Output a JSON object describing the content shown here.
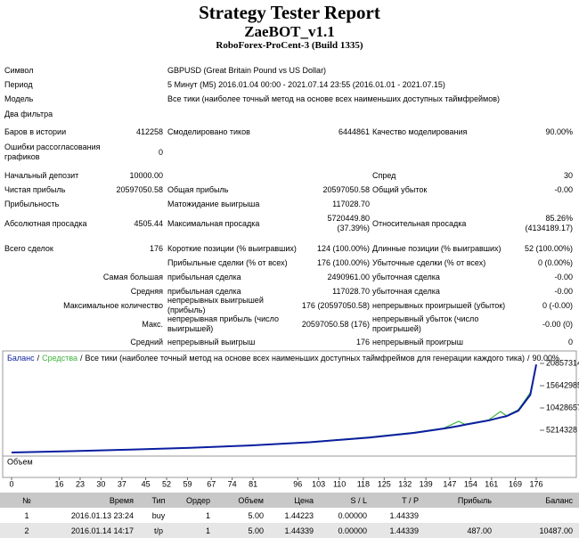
{
  "header": {
    "title": "Strategy Tester Report",
    "subtitle": "ZaeBOT_v1.1",
    "server": "RoboForex-ProCent-3 (Build 1335)"
  },
  "summary": {
    "rows": [
      [
        "Символ",
        null,
        "GBPUSD (Great Britain Pound vs US Dollar)",
        null,
        null,
        null
      ],
      [
        "Период",
        null,
        "5 Минут (M5) 2016.01.04 00:00 - 2021.07.14 23:55 (2016.01.01 - 2021.07.15)",
        null,
        null,
        null
      ],
      [
        "Модель",
        null,
        "Все тики (наиболее точный метод на основе всех наименьших доступных таймфреймов)",
        null,
        null,
        null
      ],
      [
        "Два фильтра",
        null,
        null,
        null,
        null,
        null
      ],
      [
        "Баров в истории",
        "412258",
        "Смоделировано тиков",
        "6444861",
        "Качество моделирования",
        "90.00%"
      ],
      [
        "Ошибки рассогласования графиков",
        "0",
        null,
        null,
        null,
        null
      ],
      [
        "Начальный депозит",
        "10000.00",
        null,
        null,
        "Спред",
        "30"
      ],
      [
        "Чистая прибыль",
        "20597050.58",
        "Общая прибыль",
        "20597050.58",
        "Общий убыток",
        "-0.00"
      ],
      [
        "Прибыльность",
        null,
        "Матожидание выигрыша",
        "117028.70",
        null,
        null
      ],
      [
        "Абсолютная просадка",
        "4505.44",
        "Максимальная просадка",
        "5720449.80 (37.39%)",
        "Относительная просадка",
        "85.26% (4134189.17)"
      ],
      [
        "Всего сделок",
        "176",
        "Короткие позиции (% выигравших)",
        "124 (100.00%)",
        "Длинные позиции (% выигравших)",
        "52 (100.00%)"
      ],
      [
        null,
        null,
        "Прибыльные сделки (% от всех)",
        "176 (100.00%)",
        "Убыточные сделки (% от всех)",
        "0 (0.00%)"
      ],
      [
        null,
        "Самая большая",
        "прибыльная сделка",
        "2490961.00",
        "убыточная сделка",
        "-0.00"
      ],
      [
        null,
        "Средняя",
        "прибыльная сделка",
        "117028.70",
        "убыточная сделка",
        "-0.00"
      ],
      [
        null,
        "Максимальное количество",
        "непрерывных выигрышей (прибыль)",
        "176 (20597050.58)",
        "непрерывных проигрышей (убыток)",
        "0 (-0.00)"
      ],
      [
        null,
        "Макс.",
        "непрерывная прибыль (число выигрышей)",
        "20597050.58 (176)",
        "непрерывный убыток (число проигрышей)",
        "-0.00 (0)"
      ],
      [
        null,
        "Средний",
        "непрерывный выигрыш",
        "176",
        "непрерывный проигрыш",
        "0"
      ]
    ]
  },
  "chart_data": {
    "type": "line",
    "separator": "/",
    "legend_note": "Все тики (наиболее точный метод на основе всех наименьших доступных таймфреймов для генерации каждого тика)",
    "quality": "90.00%",
    "volume_label": "Объем",
    "x": [
      0,
      20,
      40,
      60,
      80,
      100,
      120,
      135,
      145,
      150,
      152,
      160,
      164,
      166,
      170,
      174,
      176
    ],
    "series": [
      {
        "name": "Баланс",
        "color": "#0a1ea0",
        "values": [
          10000,
          320000,
          680000,
          1100000,
          1650000,
          2400000,
          3500000,
          4600000,
          5600000,
          6200000,
          6500000,
          7500000,
          8200000,
          8500000,
          9800000,
          13500000,
          20597050
        ]
      },
      {
        "name": "Средства",
        "color": "#3cb43c",
        "values": [
          10000,
          330000,
          700000,
          1120000,
          1680000,
          2450000,
          3600000,
          4700000,
          5700000,
          7300000,
          6600000,
          7600000,
          9600000,
          8600000,
          10000000,
          14000000,
          20597050
        ]
      }
    ],
    "xlim": [
      0,
      176
    ],
    "xticks": [
      0,
      16,
      23,
      30,
      37,
      45,
      52,
      59,
      67,
      74,
      81,
      96,
      103,
      110,
      118,
      125,
      132,
      139,
      147,
      154,
      161,
      169,
      176
    ],
    "ylim": [
      0,
      21900000
    ],
    "yticks": [
      5214328,
      10428657,
      15642985,
      20857314
    ]
  },
  "trades": {
    "header": [
      "№",
      "Время",
      "Тип",
      "Ордер",
      "Объем",
      "Цена",
      "S / L",
      "T / P",
      "Прибыль",
      "Баланс"
    ],
    "rows": [
      [
        "1",
        "2016.01.13 23:24",
        "buy",
        "1",
        "5.00",
        "1.44223",
        "0.00000",
        "1.44339",
        null,
        null
      ],
      [
        "2",
        "2016.01.14 14:17",
        "t/p",
        "1",
        "5.00",
        "1.44339",
        "0.00000",
        "1.44339",
        "487.00",
        "10487.00"
      ]
    ]
  }
}
